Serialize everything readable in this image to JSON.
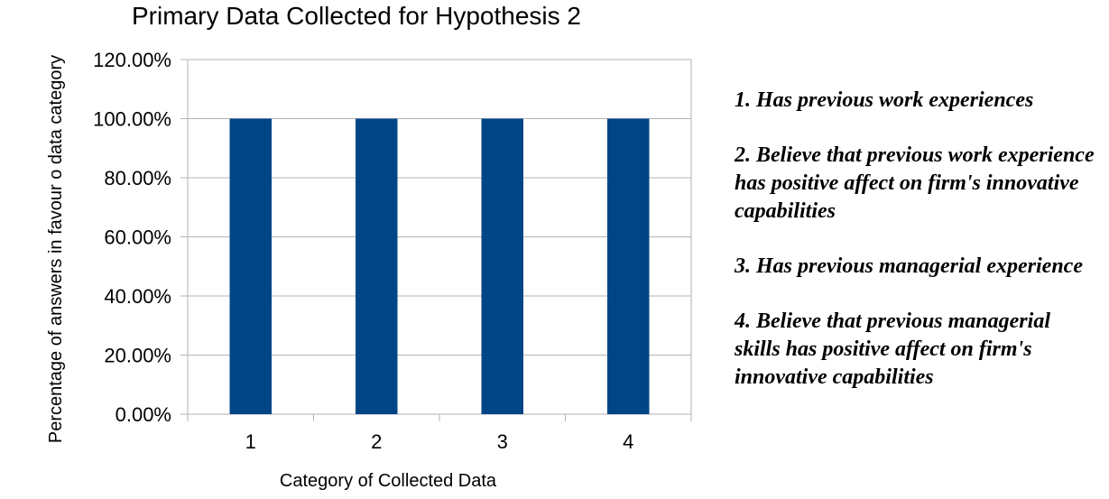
{
  "chart_data": {
    "type": "bar",
    "title": "Primary Data Collected for Hypothesis 2",
    "xlabel": "Category of Collected Data",
    "ylabel": "Percentage of answers in favour o data  category",
    "categories": [
      "1",
      "2",
      "3",
      "4"
    ],
    "values": [
      100,
      100,
      100,
      100
    ],
    "ylim": [
      0,
      120
    ],
    "yticks": [
      "0.00%",
      "20.00%",
      "40.00%",
      "60.00%",
      "80.00%",
      "100.00%",
      "120.00%"
    ],
    "grid": true,
    "bar_color": "#004586",
    "legend": [
      "1. Has previous work experiences",
      "2. Believe that previous work experience has positive affect on firm's innovative capabilities",
      "3. Has previous managerial experience",
      "4. Believe that previous managerial skills has positive affect on firm's innovative capabilities"
    ]
  }
}
